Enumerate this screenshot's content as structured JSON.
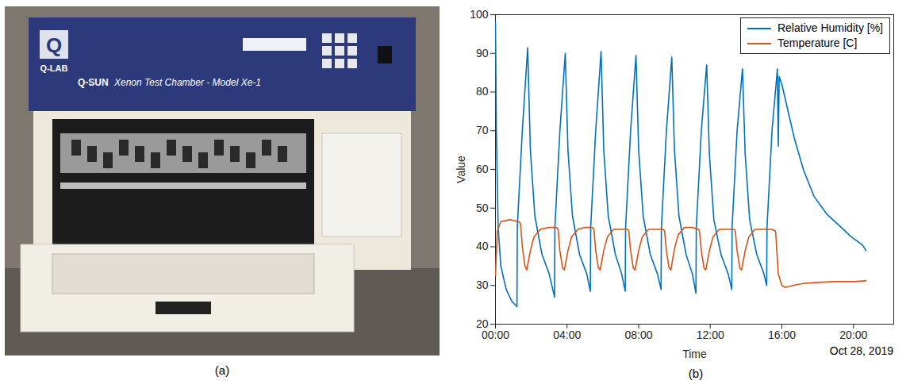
{
  "photo": {
    "caption": "(a)",
    "logo_letter": "Q",
    "logo_text": "Q-LAB",
    "brand": "Q-SUN",
    "model_text": "Xenon Test Chamber - Model Xe-1"
  },
  "chart_data": {
    "type": "line",
    "caption": "(b)",
    "x_label": "Time",
    "y_label": "Value",
    "date_label": "Oct 28, 2019",
    "xlim": [
      0,
      22.25
    ],
    "xticks": [
      {
        "value": 0,
        "label": "00:00"
      },
      {
        "value": 4,
        "label": "04:00"
      },
      {
        "value": 8,
        "label": "08:00"
      },
      {
        "value": 12,
        "label": "12:00"
      },
      {
        "value": 16,
        "label": "16:00"
      },
      {
        "value": 20,
        "label": "20:00"
      }
    ],
    "ylim": [
      20,
      100
    ],
    "yticks": [
      20,
      30,
      40,
      50,
      60,
      70,
      80,
      90,
      100
    ],
    "grid": false,
    "legend": "top-right",
    "series": [
      {
        "name": "Relative Humidity [%]",
        "color": "#0072BD",
        "x": [
          0,
          0.05,
          0.15,
          0.3,
          0.6,
          0.9,
          1.2,
          1.22,
          1.5,
          1.8,
          1.95,
          2.2,
          2.6,
          3.0,
          3.3,
          3.32,
          3.6,
          3.9,
          4.05,
          4.3,
          4.7,
          5.1,
          5.3,
          5.32,
          5.6,
          5.9,
          6.05,
          6.3,
          6.7,
          7.05,
          7.25,
          7.27,
          7.55,
          7.85,
          8.0,
          8.25,
          8.65,
          9.05,
          9.25,
          9.27,
          9.55,
          9.85,
          10.0,
          10.25,
          10.65,
          11.0,
          11.2,
          11.22,
          11.5,
          11.8,
          11.95,
          12.2,
          12.6,
          13.0,
          13.2,
          13.22,
          13.5,
          13.8,
          13.95,
          14.2,
          14.6,
          15.0,
          15.15,
          15.17,
          15.45,
          15.75,
          15.8,
          15.85,
          16.0,
          16.3,
          16.7,
          17.2,
          17.8,
          18.5,
          19.2,
          19.9,
          20.5,
          20.7
        ],
        "values": [
          98,
          70,
          45,
          35,
          29,
          26,
          24.5,
          45,
          70,
          91.5,
          65,
          48,
          38,
          33,
          27,
          45,
          70,
          90,
          65,
          48,
          38,
          33,
          28.5,
          45,
          70,
          90.5,
          65,
          48,
          38,
          33,
          28.5,
          45,
          70,
          89.5,
          65,
          48,
          38,
          33,
          29,
          45,
          70,
          89,
          65,
          48,
          38,
          33,
          28,
          45,
          70,
          87,
          64,
          47,
          38,
          33,
          29,
          45,
          70,
          86,
          64,
          47,
          38,
          33,
          30,
          45,
          70,
          86,
          66,
          84,
          82,
          76,
          68,
          60,
          53,
          48.5,
          45.5,
          42.5,
          40.5,
          39
        ]
      },
      {
        "name": "Temperature [C]",
        "color": "#D95319",
        "x": [
          0,
          0.1,
          0.3,
          0.8,
          1.3,
          1.4,
          1.5,
          1.65,
          1.75,
          1.95,
          2.15,
          2.5,
          3.0,
          3.4,
          3.5,
          3.6,
          3.75,
          3.85,
          4.05,
          4.25,
          4.6,
          5.0,
          5.4,
          5.5,
          5.6,
          5.75,
          5.85,
          6.05,
          6.25,
          6.6,
          7.0,
          7.4,
          7.45,
          7.55,
          7.7,
          7.8,
          8.0,
          8.2,
          8.55,
          9.0,
          9.4,
          9.45,
          9.55,
          9.7,
          9.8,
          10.0,
          10.2,
          10.55,
          11.0,
          11.35,
          11.4,
          11.5,
          11.65,
          11.75,
          11.95,
          12.15,
          12.5,
          13.0,
          13.35,
          13.4,
          13.5,
          13.65,
          13.75,
          13.95,
          14.15,
          14.5,
          15.0,
          15.35,
          15.45,
          15.65,
          15.8,
          16.0,
          16.2,
          16.6,
          17.2,
          18.0,
          19.0,
          20.0,
          20.7
        ],
        "values": [
          32.5,
          44,
          46.5,
          47,
          46.5,
          46,
          40,
          35,
          34,
          39,
          42.5,
          44.5,
          45,
          45,
          44.5,
          39,
          34.5,
          34,
          39,
          42.5,
          44.5,
          45,
          45,
          44.5,
          39,
          34.5,
          34,
          39,
          42.5,
          44.5,
          44.5,
          44.5,
          44,
          39,
          34.5,
          34,
          39,
          42.5,
          44.5,
          44.5,
          44.5,
          44,
          39,
          34.5,
          34,
          39.5,
          43,
          45,
          45,
          44.5,
          44,
          39,
          34.5,
          34,
          39,
          42.5,
          44.5,
          44.5,
          44.5,
          44,
          39,
          34.5,
          34,
          39,
          42.5,
          44.5,
          44.5,
          44.5,
          44.5,
          44,
          33,
          30,
          29.5,
          30,
          30.5,
          30.8,
          31,
          31,
          31.2
        ]
      }
    ]
  }
}
